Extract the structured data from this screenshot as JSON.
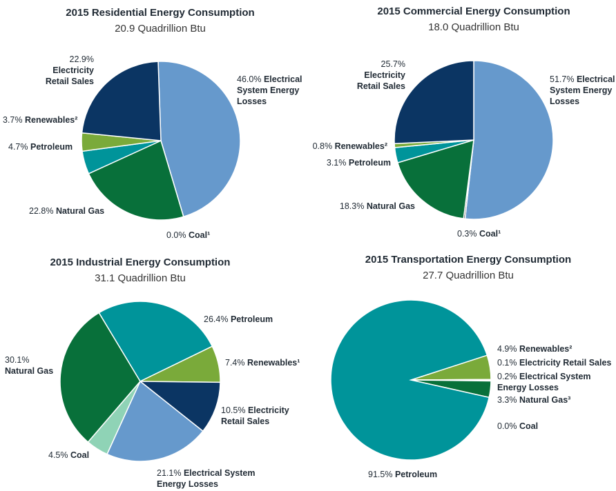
{
  "chart_data": [
    {
      "type": "pie",
      "title": "2015 Residential Energy Consumption",
      "subtitle": "20.9 Quadrillion Btu",
      "categories": [
        "Electrical System Energy Losses",
        "Coal¹",
        "Natural Gas",
        "Petroleum",
        "Renewables²",
        "Electricity Retail Sales"
      ],
      "values": [
        46.0,
        0.0,
        22.8,
        4.7,
        3.7,
        22.9
      ],
      "value_labels": [
        "46.0%",
        "0.0%",
        "22.8%",
        "4.7%",
        "3.7%",
        "22.9%"
      ],
      "colors": [
        "#6699cc",
        "#1a1a1a",
        "#08703a",
        "#00949a",
        "#7aaa3a",
        "#0b3563"
      ]
    },
    {
      "type": "pie",
      "title": "2015 Commercial Energy Consumption",
      "subtitle": "18.0 Quadrillion Btu",
      "categories": [
        "Electrical System Energy Losses",
        "Coal¹",
        "Natural Gas",
        "Petroleum",
        "Renewables²",
        "Electricity Retail Sales"
      ],
      "values": [
        51.7,
        0.3,
        18.3,
        3.1,
        0.8,
        25.7
      ],
      "value_labels": [
        "51.7%",
        "0.3%",
        "18.3%",
        "3.1%",
        "0.8%",
        "25.7%"
      ],
      "colors": [
        "#6699cc",
        "#1a1a1a",
        "#08703a",
        "#00949a",
        "#7aaa3a",
        "#0b3563"
      ]
    },
    {
      "type": "pie",
      "title": "2015 Industrial Energy Consumption",
      "subtitle": "31.1 Quadrillion Btu",
      "categories": [
        "Petroleum",
        "Renewables¹",
        "Electricity Retail Sales",
        "Electrical System Energy Losses",
        "Coal",
        "Natural Gas"
      ],
      "values": [
        26.4,
        7.4,
        10.5,
        21.1,
        4.5,
        30.1
      ],
      "value_labels": [
        "26.4%",
        "7.4%",
        "10.5%",
        "21.1%",
        "4.5%",
        "30.1%"
      ],
      "colors": [
        "#00949a",
        "#7aaa3a",
        "#0b3563",
        "#6699cc",
        "#8fd3b6",
        "#08703a"
      ]
    },
    {
      "type": "pie",
      "title": "2015 Transportation Energy Consumption",
      "subtitle": "27.7 Quadrillion Btu",
      "categories": [
        "Renewables²",
        "Electricity Retail Sales",
        "Electrical System Energy Losses",
        "Natural Gas³",
        "Coal",
        "Petroleum"
      ],
      "values": [
        4.9,
        0.1,
        0.2,
        3.3,
        0.0,
        91.5
      ],
      "value_labels": [
        "4.9%",
        "0.1%",
        "0.2%",
        "3.3%",
        "0.0%",
        "91.5%"
      ],
      "colors": [
        "#7aaa3a",
        "#0b3563",
        "#6699cc",
        "#08703a",
        "#8fd3b6",
        "#00949a"
      ]
    }
  ]
}
